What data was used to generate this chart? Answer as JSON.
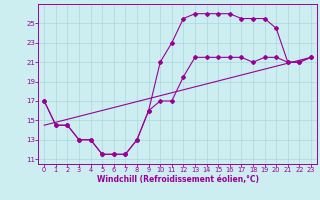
{
  "xlabel": "Windchill (Refroidissement éolien,°C)",
  "bg_color": "#cdeef0",
  "line_color": "#990099",
  "grid_color": "#aad8dc",
  "xlim": [
    -0.5,
    23.5
  ],
  "ylim": [
    10.5,
    27
  ],
  "yticks": [
    11,
    13,
    15,
    17,
    19,
    21,
    23,
    25
  ],
  "xticks": [
    0,
    1,
    2,
    3,
    4,
    5,
    6,
    7,
    8,
    9,
    10,
    11,
    12,
    13,
    14,
    15,
    16,
    17,
    18,
    19,
    20,
    21,
    22,
    23
  ],
  "line1_x": [
    0,
    1,
    2,
    3,
    4,
    5,
    6,
    7,
    8,
    9,
    10,
    11,
    12,
    13,
    14,
    15,
    16,
    17,
    18,
    19,
    20,
    21,
    22,
    23
  ],
  "line1_y": [
    17.0,
    14.5,
    14.5,
    13.0,
    13.0,
    11.5,
    11.5,
    11.5,
    13.0,
    16.0,
    21.0,
    23.0,
    25.5,
    26.0,
    26.0,
    26.0,
    26.0,
    25.5,
    25.5,
    25.5,
    24.5,
    21.0,
    21.0,
    21.5
  ],
  "line2_x": [
    0,
    1,
    2,
    3,
    4,
    5,
    6,
    7,
    8,
    9,
    10,
    11,
    12,
    13,
    14,
    15,
    16,
    17,
    18,
    19,
    20,
    21,
    22,
    23
  ],
  "line2_y": [
    17.0,
    14.5,
    14.5,
    13.0,
    13.0,
    11.5,
    11.5,
    11.5,
    13.0,
    16.0,
    17.0,
    17.0,
    19.5,
    21.5,
    21.5,
    21.5,
    21.5,
    21.5,
    21.0,
    21.5,
    21.5,
    21.0,
    21.0,
    21.5
  ],
  "line3_x": [
    0,
    23
  ],
  "line3_y": [
    14.5,
    21.5
  ]
}
